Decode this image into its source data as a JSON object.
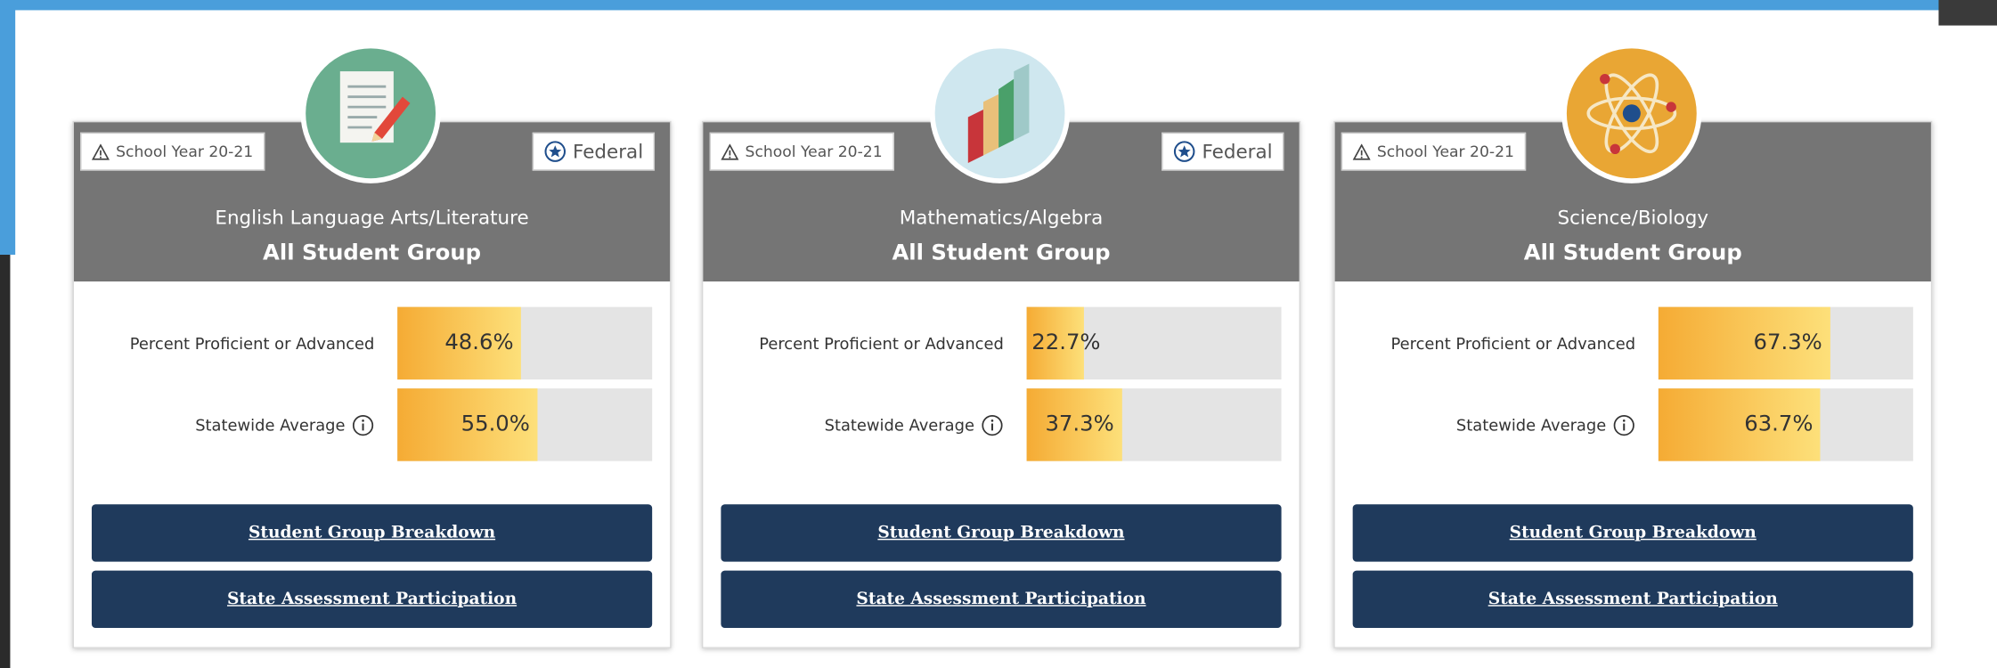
{
  "cards": [
    {
      "badge": "School Year 20-21",
      "federal": "Federal",
      "subject": "English Language Arts/Literature",
      "group": "All Student Group",
      "metrics": [
        {
          "label": "Percent Proficient or Advanced",
          "value": 48.6,
          "value_label": "48.6%"
        },
        {
          "label": "Statewide Average",
          "value": 55.0,
          "value_label": "55.0%"
        }
      ],
      "buttons": [
        "Student Group Breakdown",
        "State Assessment Participation"
      ]
    },
    {
      "badge": "School Year 20-21",
      "federal": "Federal",
      "subject": "Mathematics/Algebra",
      "group": "All Student Group",
      "metrics": [
        {
          "label": "Percent Proficient or Advanced",
          "value": 22.7,
          "value_label": "22.7%"
        },
        {
          "label": "Statewide Average",
          "value": 37.3,
          "value_label": "37.3%"
        }
      ],
      "buttons": [
        "Student Group Breakdown",
        "State Assessment Participation"
      ]
    },
    {
      "badge": "School Year 20-21",
      "subject": "Science/Biology",
      "group": "All Student Group",
      "metrics": [
        {
          "label": "Percent Proficient or Advanced",
          "value": 67.3,
          "value_label": "67.3%"
        },
        {
          "label": "Statewide Average",
          "value": 63.7,
          "value_label": "63.7%"
        }
      ],
      "buttons": [
        "Student Group Breakdown",
        "State Assessment Participation"
      ]
    }
  ]
}
